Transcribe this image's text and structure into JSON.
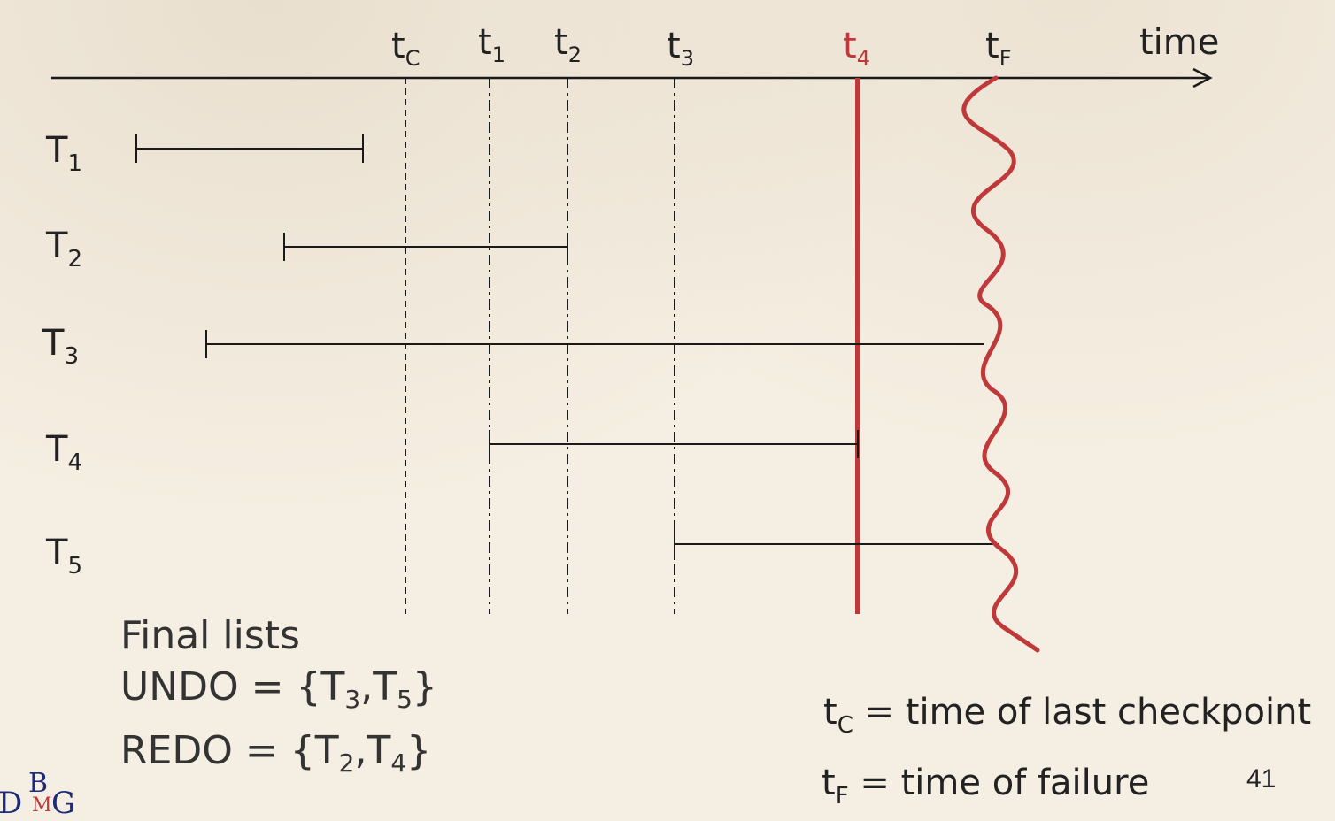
{
  "diagram": {
    "axis_label": "time",
    "time_markers": [
      {
        "id": "tc",
        "base": "t",
        "sub": "C",
        "color": "#222222",
        "line": "dashed"
      },
      {
        "id": "t1",
        "base": "t",
        "sub": "1",
        "color": "#222222",
        "line": "dashdot"
      },
      {
        "id": "t2",
        "base": "t",
        "sub": "2",
        "color": "#222222",
        "line": "dashdot"
      },
      {
        "id": "t3",
        "base": "t",
        "sub": "3",
        "color": "#222222",
        "line": "dashdot"
      },
      {
        "id": "t4",
        "base": "t",
        "sub": "4",
        "color": "#c0393a",
        "line": "solid-red"
      },
      {
        "id": "tf",
        "base": "t",
        "sub": "F",
        "color": "#222222",
        "line": "wavy-red"
      }
    ],
    "transactions": [
      {
        "id": "T1",
        "base": "T",
        "sub": "1"
      },
      {
        "id": "T2",
        "base": "T",
        "sub": "2"
      },
      {
        "id": "T3",
        "base": "T",
        "sub": "3"
      },
      {
        "id": "T4",
        "base": "T",
        "sub": "4"
      },
      {
        "id": "T5",
        "base": "T",
        "sub": "5"
      }
    ],
    "colors": {
      "line": "#1a1a1a",
      "failure": "#c0393a",
      "text": "#222222"
    }
  },
  "final": {
    "title": "Final lists",
    "undo_prefix": "UNDO = {",
    "undo_a": "T",
    "undo_a_sub": "3",
    "sep": ",",
    "undo_b": "T",
    "undo_b_sub": "5",
    "close": "}",
    "redo_prefix": "REDO = {",
    "redo_a": "T",
    "redo_a_sub": "2",
    "redo_b": "T",
    "redo_b_sub": "4"
  },
  "legend": {
    "tc_base": "t",
    "tc_sub": "C",
    "tc_text": " = time of last checkpoint",
    "tf_base": "t",
    "tf_sub": "F",
    "tf_text": " = time of failure"
  },
  "page_number": "41",
  "logo": {
    "d": "D",
    "b": "B",
    "m": "M",
    "g": "G"
  }
}
